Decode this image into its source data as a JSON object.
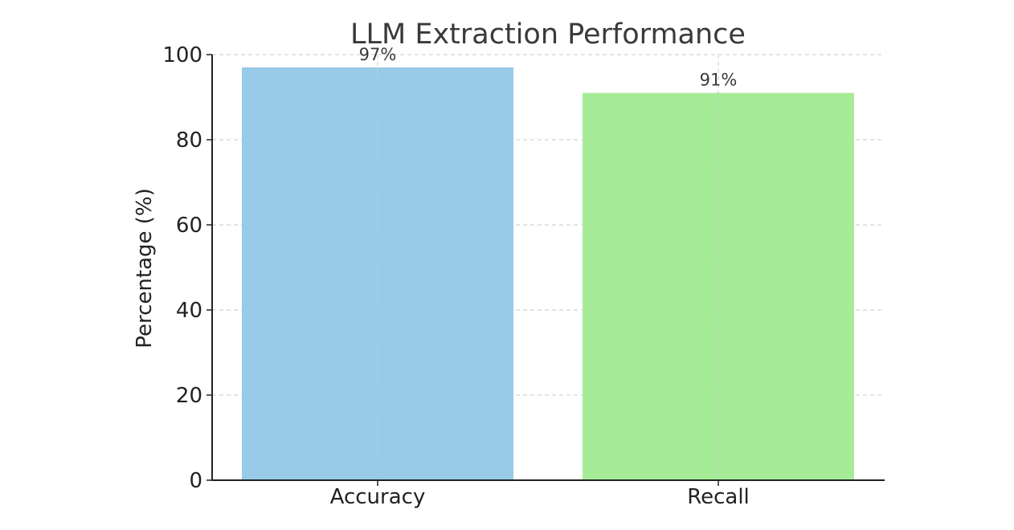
{
  "chart_data": {
    "type": "bar",
    "title": "LLM Extraction Performance",
    "xlabel": "",
    "ylabel": "Percentage (%)",
    "categories": [
      "Accuracy",
      "Recall"
    ],
    "values": [
      97,
      91
    ],
    "data_labels": [
      "97%",
      "91%"
    ],
    "colors": [
      "#97cbe7",
      "#a6ec98"
    ],
    "ylim": [
      0,
      100
    ],
    "yticks": [
      0,
      20,
      40,
      60,
      80,
      100
    ],
    "grid": true,
    "legend": "none"
  }
}
